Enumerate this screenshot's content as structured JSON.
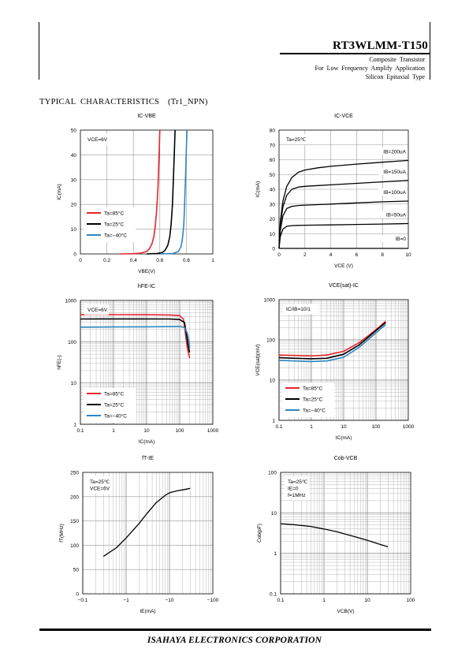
{
  "header": {
    "part_number": "RT3WLMM-T150",
    "subtitle_lines": [
      "Composite Transistor",
      "For Low Frequency Amplify Application",
      "Silicon Epitaxial Type"
    ]
  },
  "section_title": "TYPICAL CHARACTERISTICS　(Tr1_NPN)",
  "footer": "ISAHAYA ELECTRONICS CORPORATION",
  "colors": {
    "red": "#e3262c",
    "black": "#000000",
    "blue": "#2e86c1"
  },
  "chart_data": [
    {
      "type": "line",
      "title": "IC-VBE",
      "xlabel": "VBE(V)",
      "ylabel": "IC(mA)",
      "xlim": [
        0,
        1
      ],
      "ylim": [
        0,
        50
      ],
      "xticks": [
        "0",
        "0.2",
        "0.4",
        "0.6",
        "0.8",
        "1"
      ],
      "yticks": [
        "0",
        "10",
        "20",
        "30",
        "40",
        "50"
      ],
      "annotations": [
        "VCE=6V"
      ],
      "legend": "bottom-left",
      "series": [
        {
          "name": "Ta=85°C",
          "color": "red",
          "x": [
            0.3,
            0.4,
            0.45,
            0.5,
            0.52,
            0.54,
            0.555,
            0.565,
            0.575,
            0.585,
            0.59,
            0.595,
            0.6
          ],
          "y": [
            0,
            0.1,
            0.3,
            1,
            2,
            4,
            7,
            11,
            17,
            26,
            33,
            42,
            50
          ]
        },
        {
          "name": "Ta=25°C",
          "color": "black",
          "x": [
            0.5,
            0.58,
            0.62,
            0.64,
            0.66,
            0.675,
            0.685,
            0.695,
            0.7,
            0.705,
            0.71,
            0.715
          ],
          "y": [
            0,
            0.2,
            0.6,
            1.5,
            3.5,
            7,
            12,
            20,
            27,
            34,
            42,
            50
          ]
        },
        {
          "name": "Ta=−40°C",
          "color": "blue",
          "x": [
            0.6,
            0.7,
            0.74,
            0.76,
            0.77,
            0.78,
            0.785,
            0.79,
            0.795,
            0.8,
            0.805
          ],
          "y": [
            0,
            0.2,
            1,
            3,
            6,
            11,
            17,
            25,
            33,
            42,
            50
          ]
        }
      ]
    },
    {
      "type": "line",
      "title": "IC-VCE",
      "xlabel": "VCE (V)",
      "ylabel": "IC(mA)",
      "xlim": [
        0,
        10
      ],
      "ylim": [
        0,
        80
      ],
      "xticks": [
        "0",
        "2",
        "4",
        "6",
        "8",
        "10"
      ],
      "yticks": [
        "0",
        "10",
        "20",
        "30",
        "40",
        "50",
        "60",
        "70",
        "80"
      ],
      "annotations": [
        "Ta=25℃"
      ],
      "series": [
        {
          "name": "IB=200uA",
          "x": [
            0,
            0.1,
            0.3,
            0.6,
            1.0,
            1.5,
            2.0,
            3,
            4,
            6,
            8,
            10
          ],
          "y": [
            0,
            18,
            32,
            42,
            48,
            51.5,
            53,
            54.5,
            55.5,
            57,
            58.3,
            59.5
          ]
        },
        {
          "name": "IB=150uA",
          "x": [
            0,
            0.1,
            0.3,
            0.6,
            1.0,
            1.5,
            2.0,
            3,
            4,
            6,
            8,
            10
          ],
          "y": [
            0,
            16,
            28,
            36,
            40,
            41.5,
            42,
            42.5,
            43,
            44,
            45,
            46
          ]
        },
        {
          "name": "IB=100uA",
          "x": [
            0,
            0.1,
            0.3,
            0.6,
            1.0,
            1.5,
            2.0,
            3,
            4,
            6,
            8,
            10
          ],
          "y": [
            0,
            12,
            22,
            27,
            28.5,
            29,
            29.3,
            29.6,
            30,
            30.8,
            31.5,
            32
          ]
        },
        {
          "name": "IB=50uA",
          "x": [
            0,
            0.1,
            0.3,
            0.6,
            1.0,
            1.5,
            2.0,
            3,
            4,
            6,
            8,
            10
          ],
          "y": [
            0,
            8,
            13,
            15,
            15.4,
            15.6,
            15.7,
            15.8,
            15.9,
            16.2,
            16.5,
            16.8
          ]
        },
        {
          "name": "IB=0",
          "x": [
            0,
            10
          ],
          "y": [
            0,
            0
          ]
        }
      ]
    },
    {
      "type": "line",
      "title": "hFE-IC",
      "xlabel": "IC(mA)",
      "ylabel": "hFE(-)",
      "xscale": "log",
      "yscale": "log",
      "xlim": [
        0.1,
        1000
      ],
      "ylim": [
        1,
        1000
      ],
      "xticks": [
        "0.1",
        "1",
        "10",
        "100",
        "1000"
      ],
      "yticks": [
        "1",
        "10",
        "100",
        "1000"
      ],
      "annotations": [
        "VCE=6V"
      ],
      "legend": "bottom-left",
      "series": [
        {
          "name": "Ta=85°C",
          "color": "red",
          "x": [
            0.1,
            1,
            10,
            50,
            100,
            130,
            150,
            170,
            200
          ],
          "y": [
            450,
            452,
            450,
            445,
            430,
            350,
            150,
            70,
            40
          ]
        },
        {
          "name": "Ta=25°C",
          "color": "black",
          "x": [
            0.1,
            1,
            10,
            50,
            100,
            140,
            160,
            180,
            200
          ],
          "y": [
            355,
            357,
            357,
            355,
            345,
            290,
            150,
            80,
            55
          ]
        },
        {
          "name": "Ta=−40°C",
          "color": "blue",
          "x": [
            0.1,
            1,
            10,
            50,
            100,
            140,
            170,
            190,
            200
          ],
          "y": [
            225,
            228,
            230,
            232,
            235,
            220,
            160,
            100,
            70
          ]
        }
      ]
    },
    {
      "type": "line",
      "title": "VCE(sat)-IC",
      "xlabel": "IC(mA)",
      "ylabel": "VCE(sat)(mV)",
      "xscale": "log",
      "yscale": "log",
      "xlim": [
        0.1,
        1000
      ],
      "ylim": [
        1,
        1000
      ],
      "xticks": [
        "0.1",
        "1",
        "10",
        "100",
        "1000"
      ],
      "yticks": [
        "1",
        "10",
        "100",
        "1000"
      ],
      "annotations": [
        "IC/IB=10/1"
      ],
      "legend": "bottom-left",
      "series": [
        {
          "name": "Ta=85°C",
          "color": "red",
          "x": [
            0.1,
            0.3,
            1,
            3,
            10,
            30,
            60,
            100,
            200
          ],
          "y": [
            42,
            41,
            40,
            42,
            52,
            85,
            130,
            180,
            290
          ]
        },
        {
          "name": "Ta=25°C",
          "color": "black",
          "x": [
            0.1,
            0.3,
            1,
            3,
            10,
            30,
            60,
            100,
            200
          ],
          "y": [
            36,
            35,
            34,
            35,
            44,
            75,
            120,
            170,
            270
          ]
        },
        {
          "name": "Ta=−40°C",
          "color": "blue",
          "x": [
            0.1,
            0.3,
            1,
            3,
            10,
            30,
            60,
            100,
            200
          ],
          "y": [
            31,
            30,
            29,
            30,
            37,
            65,
            105,
            150,
            240
          ]
        }
      ]
    },
    {
      "type": "line",
      "title": "fT-IE",
      "xlabel": "IE(mA)",
      "ylabel": "fT(MHz)",
      "xscale": "log",
      "xlim": [
        0.1,
        100
      ],
      "ylim": [
        0,
        250
      ],
      "xticks": [
        "−0.1",
        "−1",
        "−10",
        "−100"
      ],
      "yticks": [
        "0",
        "50",
        "100",
        "150",
        "200",
        "250"
      ],
      "annotations": [
        "Ta=25℃",
        "VCE=6V"
      ],
      "series": [
        {
          "name": "",
          "x": [
            0.3,
            0.6,
            1,
            2,
            3,
            5,
            8,
            10,
            15,
            20,
            30
          ],
          "y": [
            77,
            95,
            115,
            145,
            165,
            188,
            203,
            208,
            212,
            214,
            217
          ]
        }
      ]
    },
    {
      "type": "line",
      "title": "Cob-VCB",
      "xlabel": "VCB(V)",
      "ylabel": "Cob(pF)",
      "xscale": "log",
      "yscale": "log",
      "xlim": [
        0.1,
        100
      ],
      "ylim": [
        0.1,
        100
      ],
      "xticks": [
        "0.1",
        "1",
        "10",
        "100"
      ],
      "yticks": [
        "0.1",
        "1",
        "10",
        "100"
      ],
      "annotations": [
        "Ta=25℃",
        "IE=0",
        "f=1MHz"
      ],
      "series": [
        {
          "name": "",
          "x": [
            0.1,
            0.2,
            0.5,
            1,
            2,
            5,
            10,
            20,
            30
          ],
          "y": [
            5.4,
            5.1,
            4.6,
            4.0,
            3.4,
            2.6,
            2.1,
            1.65,
            1.45
          ]
        }
      ]
    }
  ]
}
